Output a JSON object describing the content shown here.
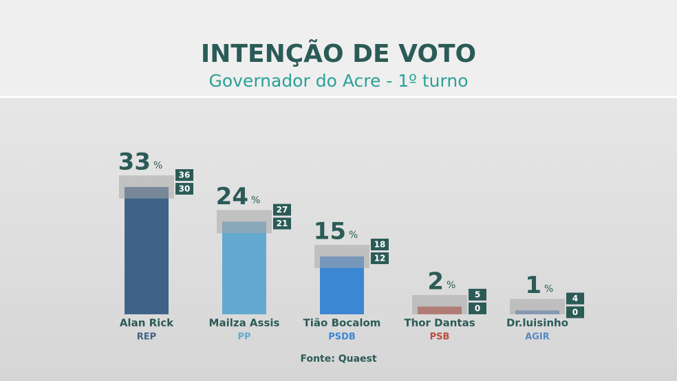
{
  "chart_data": {
    "type": "bar",
    "title": "INTENÇÃO DE VOTO",
    "subtitle": "Governador do Acre - 1º turno",
    "categories": [
      "Alan Rick",
      "Mailza Assis",
      "Tião Bocalom",
      "Thor Dantas",
      "Dr.luisinho"
    ],
    "parties": [
      "REP",
      "PP",
      "PSDB",
      "PSB",
      "AGIR"
    ],
    "colors": [
      "#3f6388",
      "#63a9d0",
      "#3c86d2",
      "#b94a3a",
      "#5a87c0"
    ],
    "values": [
      33,
      24,
      15,
      2,
      1
    ],
    "upper": [
      36,
      27,
      18,
      5,
      4
    ],
    "lower": [
      30,
      21,
      12,
      0,
      0
    ],
    "unit": "%",
    "source": "Fonte: Quaest"
  }
}
